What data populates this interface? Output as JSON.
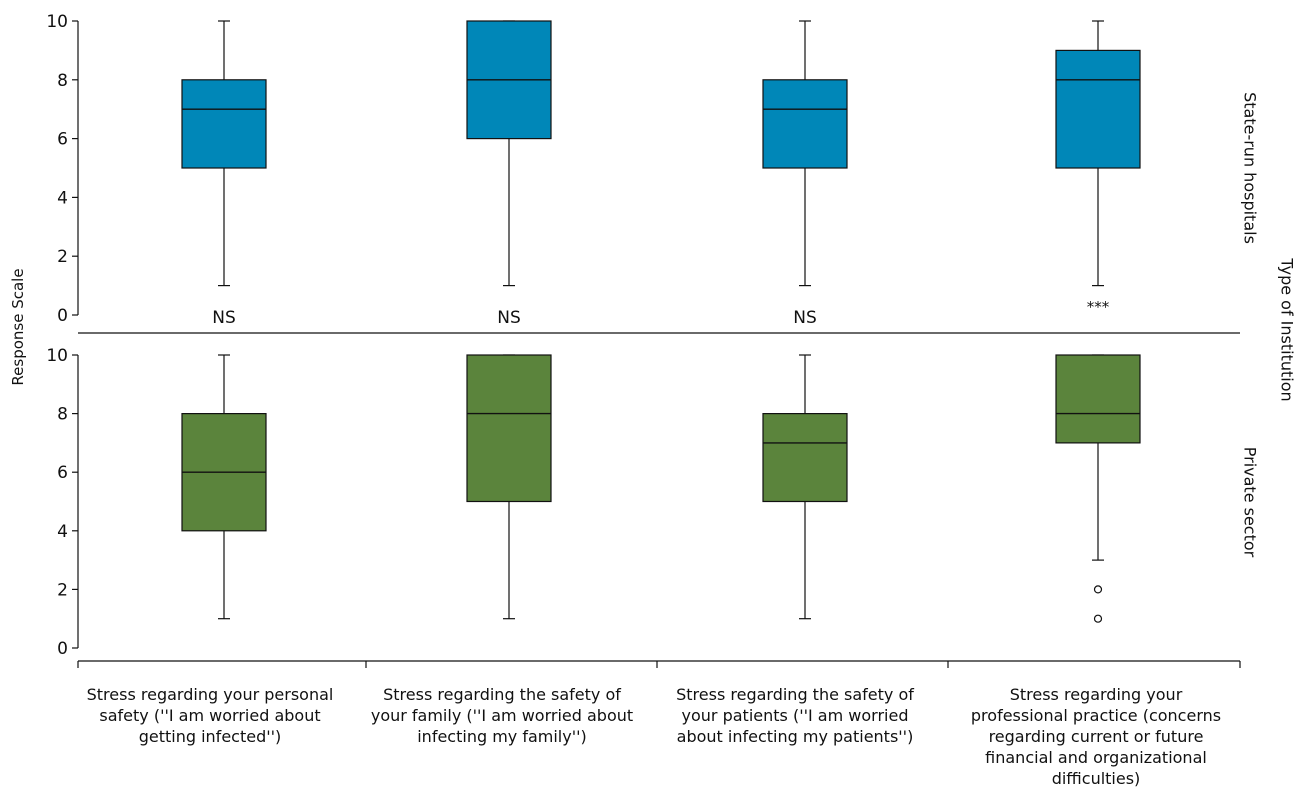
{
  "chart_data": {
    "type": "boxplot",
    "categories": [
      "Stress regarding your personal safety (''I am worried about getting infected'')",
      "Stress regarding the safety of your family (''I am worried about infecting my family'')",
      "Stress regarding the safety of your patients (''I am worried about infecting my patients'')",
      "Stress regarding your professional practice (concerns regarding current or future financial and organizational difficulties)"
    ],
    "ylabel": "Response Scale",
    "facet_label": "Type of Institution",
    "ylim": [
      0,
      10
    ],
    "yticks": [
      0,
      2,
      4,
      6,
      8,
      10
    ],
    "panels": [
      {
        "name": "State-run hospitals",
        "color": "#0087b8",
        "boxes": [
          {
            "min": 1,
            "q1": 5,
            "median": 7,
            "q3": 8,
            "max": 10,
            "outliers": []
          },
          {
            "min": 1,
            "q1": 6,
            "median": 8,
            "q3": 10,
            "max": 10,
            "outliers": []
          },
          {
            "min": 1,
            "q1": 5,
            "median": 7,
            "q3": 8,
            "max": 10,
            "outliers": []
          },
          {
            "min": 1,
            "q1": 5,
            "median": 8,
            "q3": 9,
            "max": 10,
            "outliers": []
          }
        ],
        "significance": [
          "NS",
          "NS",
          "NS",
          "***"
        ]
      },
      {
        "name": "Private sector",
        "color": "#5b843c",
        "boxes": [
          {
            "min": 1,
            "q1": 4,
            "median": 6,
            "q3": 8,
            "max": 10,
            "outliers": []
          },
          {
            "min": 1,
            "q1": 5,
            "median": 8,
            "q3": 10,
            "max": 10,
            "outliers": []
          },
          {
            "min": 1,
            "q1": 5,
            "median": 7,
            "q3": 8,
            "max": 10,
            "outliers": []
          },
          {
            "min": 3,
            "q1": 7,
            "median": 8,
            "q3": 10,
            "max": 10,
            "outliers": [
              2,
              1
            ]
          }
        ],
        "significance": []
      }
    ]
  }
}
